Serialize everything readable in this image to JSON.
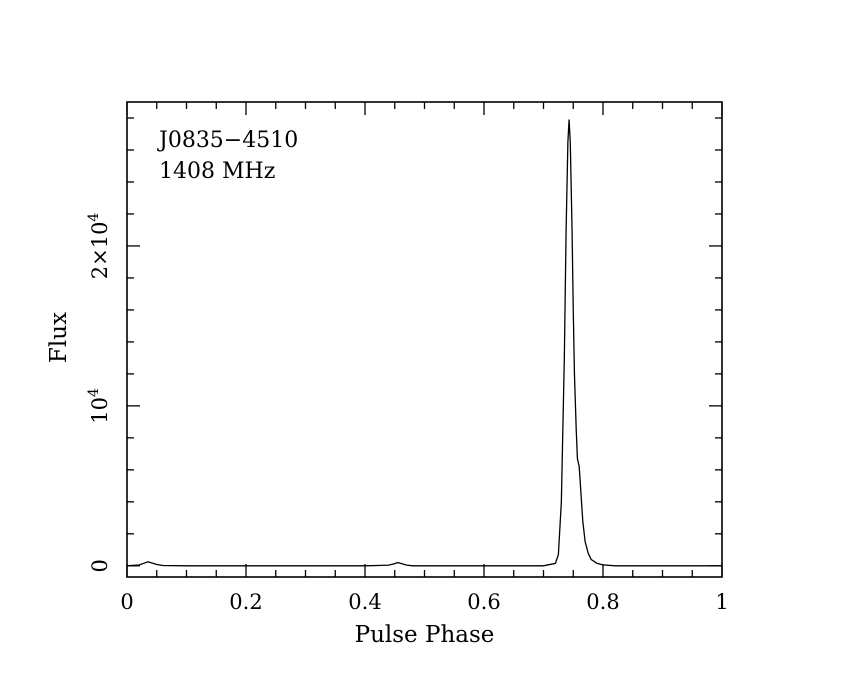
{
  "chart_data": {
    "type": "line",
    "xlabel": "Pulse Phase",
    "ylabel": "Flux",
    "xlim": [
      0,
      1
    ],
    "ylim": [
      -700,
      29000
    ],
    "annotations": [
      "J0835−4510",
      "1408 MHz"
    ],
    "x_ticks": [
      {
        "value": 0,
        "label": "0"
      },
      {
        "value": 0.2,
        "label": "0.2"
      },
      {
        "value": 0.4,
        "label": "0.4"
      },
      {
        "value": 0.6,
        "label": "0.6"
      },
      {
        "value": 0.8,
        "label": "0.8"
      },
      {
        "value": 1,
        "label": "1"
      }
    ],
    "y_ticks": [
      {
        "value": 0,
        "base": "0",
        "exp": ""
      },
      {
        "value": 10000,
        "base": "10",
        "exp": "4"
      },
      {
        "value": 20000,
        "base": "2×10",
        "exp": "4"
      }
    ],
    "x_minor_step": 0.05,
    "y_minor_step": 2000,
    "series": [
      {
        "x": [
          0.0,
          0.02,
          0.03,
          0.035,
          0.04,
          0.05,
          0.06,
          0.1,
          0.2,
          0.3,
          0.4,
          0.44,
          0.45,
          0.455,
          0.46,
          0.47,
          0.48,
          0.55,
          0.65,
          0.7,
          0.72,
          0.725,
          0.73,
          0.735,
          0.738,
          0.741,
          0.743,
          0.745,
          0.748,
          0.75,
          0.752,
          0.755,
          0.757,
          0.76,
          0.763,
          0.766,
          0.77,
          0.775,
          0.78,
          0.79,
          0.8,
          0.82,
          0.9,
          1.0
        ],
        "y": [
          0,
          50,
          180,
          250,
          200,
          80,
          20,
          0,
          0,
          0,
          0,
          40,
          140,
          200,
          150,
          40,
          0,
          0,
          0,
          0,
          150,
          700,
          4000,
          13000,
          21000,
          26500,
          27900,
          26500,
          21000,
          16000,
          12000,
          8500,
          6700,
          6200,
          4500,
          2800,
          1500,
          800,
          400,
          150,
          60,
          0,
          0,
          0
        ]
      }
    ]
  }
}
